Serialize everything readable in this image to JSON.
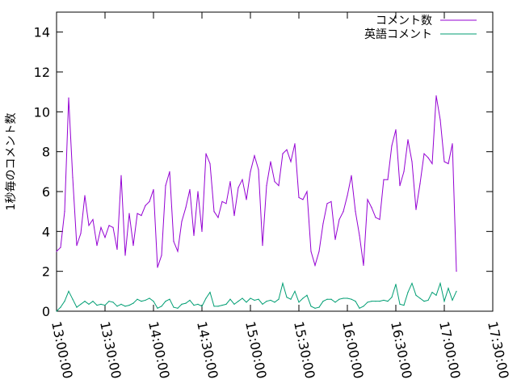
{
  "chart_data": {
    "type": "line",
    "title": "",
    "xlabel": "",
    "ylabel": "1秒毎のコメント数",
    "ylim": [
      0,
      15
    ],
    "yticks": [
      0,
      2,
      4,
      6,
      8,
      10,
      12,
      14
    ],
    "ytick_labels": [
      "0",
      "2",
      "4",
      "6",
      "8",
      "10",
      "12",
      "14"
    ],
    "xlim": [
      "13:00:00",
      "17:30:00"
    ],
    "xticks": [
      "13:00:00",
      "13:30:00",
      "14:00:00",
      "14:30:00",
      "15:00:00",
      "15:30:00",
      "16:00:00",
      "16:30:00",
      "17:00:00",
      "17:30:00"
    ],
    "legend_position": "top-right",
    "grid": false,
    "series": [
      {
        "name": "コメント数",
        "color": "#9400d3",
        "points": [
          [
            "13:00:00",
            3.0
          ],
          [
            "13:02:30",
            3.2
          ],
          [
            "13:05:00",
            5.0
          ],
          [
            "13:07:30",
            10.7
          ],
          [
            "13:10:00",
            6.7
          ],
          [
            "13:12:30",
            3.3
          ],
          [
            "13:15:00",
            3.9
          ],
          [
            "13:17:30",
            5.8
          ],
          [
            "13:20:00",
            4.3
          ],
          [
            "13:22:30",
            4.6
          ],
          [
            "13:25:00",
            3.3
          ],
          [
            "13:27:30",
            4.2
          ],
          [
            "13:30:00",
            3.7
          ],
          [
            "13:32:30",
            4.3
          ],
          [
            "13:35:00",
            4.2
          ],
          [
            "13:37:30",
            3.1
          ],
          [
            "13:40:00",
            6.8
          ],
          [
            "13:42:30",
            2.8
          ],
          [
            "13:45:00",
            4.9
          ],
          [
            "13:47:30",
            3.3
          ],
          [
            "13:50:00",
            4.9
          ],
          [
            "13:52:30",
            4.8
          ],
          [
            "13:55:00",
            5.3
          ],
          [
            "13:57:30",
            5.5
          ],
          [
            "14:00:00",
            6.1
          ],
          [
            "14:02:30",
            2.2
          ],
          [
            "14:05:00",
            2.8
          ],
          [
            "14:07:30",
            6.3
          ],
          [
            "14:10:00",
            7.0
          ],
          [
            "14:12:30",
            3.5
          ],
          [
            "14:15:00",
            3.0
          ],
          [
            "14:17:30",
            4.5
          ],
          [
            "14:20:00",
            5.2
          ],
          [
            "14:22:30",
            6.1
          ],
          [
            "14:25:00",
            3.8
          ],
          [
            "14:27:30",
            6.0
          ],
          [
            "14:30:00",
            4.0
          ],
          [
            "14:32:30",
            7.9
          ],
          [
            "14:35:00",
            7.4
          ],
          [
            "14:37:30",
            5.0
          ],
          [
            "14:40:00",
            4.7
          ],
          [
            "14:42:30",
            5.5
          ],
          [
            "14:45:00",
            5.4
          ],
          [
            "14:47:30",
            6.5
          ],
          [
            "14:50:00",
            4.8
          ],
          [
            "14:52:30",
            6.2
          ],
          [
            "14:55:00",
            6.6
          ],
          [
            "14:57:30",
            5.6
          ],
          [
            "15:00:00",
            7.0
          ],
          [
            "15:02:30",
            7.8
          ],
          [
            "15:05:00",
            7.1
          ],
          [
            "15:07:30",
            3.3
          ],
          [
            "15:10:00",
            6.3
          ],
          [
            "15:12:30",
            7.5
          ],
          [
            "15:15:00",
            6.5
          ],
          [
            "15:17:30",
            6.3
          ],
          [
            "15:20:00",
            7.9
          ],
          [
            "15:22:30",
            8.1
          ],
          [
            "15:25:00",
            7.5
          ],
          [
            "15:27:30",
            8.4
          ],
          [
            "15:30:00",
            5.7
          ],
          [
            "15:32:30",
            5.6
          ],
          [
            "15:35:00",
            6.0
          ],
          [
            "15:37:30",
            3.0
          ],
          [
            "15:40:00",
            2.3
          ],
          [
            "15:42:30",
            3.0
          ],
          [
            "15:45:00",
            4.4
          ],
          [
            "15:47:30",
            5.4
          ],
          [
            "15:50:00",
            5.5
          ],
          [
            "15:52:30",
            3.6
          ],
          [
            "15:55:00",
            4.6
          ],
          [
            "15:57:30",
            5.0
          ],
          [
            "16:00:00",
            5.8
          ],
          [
            "16:02:30",
            6.8
          ],
          [
            "16:05:00",
            5.0
          ],
          [
            "16:07:30",
            3.8
          ],
          [
            "16:10:00",
            2.3
          ],
          [
            "16:12:30",
            5.6
          ],
          [
            "16:15:00",
            5.2
          ],
          [
            "16:17:30",
            4.7
          ],
          [
            "16:20:00",
            4.6
          ],
          [
            "16:22:30",
            6.6
          ],
          [
            "16:25:00",
            6.6
          ],
          [
            "16:27:30",
            8.3
          ],
          [
            "16:30:00",
            9.1
          ],
          [
            "16:32:30",
            6.3
          ],
          [
            "16:35:00",
            7.0
          ],
          [
            "16:37:30",
            8.6
          ],
          [
            "16:40:00",
            7.5
          ],
          [
            "16:42:30",
            5.1
          ],
          [
            "16:45:00",
            6.4
          ],
          [
            "16:47:30",
            7.9
          ],
          [
            "16:50:00",
            7.7
          ],
          [
            "16:52:30",
            7.4
          ],
          [
            "16:55:00",
            10.8
          ],
          [
            "16:57:30",
            9.6
          ],
          [
            "17:00:00",
            7.5
          ],
          [
            "17:02:30",
            7.4
          ],
          [
            "17:05:00",
            8.4
          ],
          [
            "17:07:30",
            2.0
          ]
        ]
      },
      {
        "name": "英語コメント",
        "color": "#009e73",
        "points": [
          [
            "13:00:00",
            0.0
          ],
          [
            "13:02:30",
            0.2
          ],
          [
            "13:05:00",
            0.5
          ],
          [
            "13:07:30",
            1.0
          ],
          [
            "13:10:00",
            0.6
          ],
          [
            "13:12:30",
            0.2
          ],
          [
            "13:15:00",
            0.35
          ],
          [
            "13:17:30",
            0.5
          ],
          [
            "13:20:00",
            0.35
          ],
          [
            "13:22:30",
            0.5
          ],
          [
            "13:25:00",
            0.3
          ],
          [
            "13:27:30",
            0.35
          ],
          [
            "13:30:00",
            0.3
          ],
          [
            "13:32:30",
            0.5
          ],
          [
            "13:35:00",
            0.45
          ],
          [
            "13:37:30",
            0.25
          ],
          [
            "13:40:00",
            0.35
          ],
          [
            "13:42:30",
            0.25
          ],
          [
            "13:45:00",
            0.3
          ],
          [
            "13:47:30",
            0.4
          ],
          [
            "13:50:00",
            0.6
          ],
          [
            "13:52:30",
            0.5
          ],
          [
            "13:55:00",
            0.55
          ],
          [
            "13:57:30",
            0.65
          ],
          [
            "14:00:00",
            0.5
          ],
          [
            "14:02:30",
            0.15
          ],
          [
            "14:05:00",
            0.25
          ],
          [
            "14:07:30",
            0.5
          ],
          [
            "14:10:00",
            0.6
          ],
          [
            "14:12:30",
            0.2
          ],
          [
            "14:15:00",
            0.15
          ],
          [
            "14:17:30",
            0.35
          ],
          [
            "14:20:00",
            0.4
          ],
          [
            "14:22:30",
            0.55
          ],
          [
            "14:25:00",
            0.3
          ],
          [
            "14:27:30",
            0.35
          ],
          [
            "14:30:00",
            0.25
          ],
          [
            "14:32:30",
            0.65
          ],
          [
            "14:35:00",
            0.95
          ],
          [
            "14:37:30",
            0.25
          ],
          [
            "14:40:00",
            0.25
          ],
          [
            "14:42:30",
            0.3
          ],
          [
            "14:45:00",
            0.35
          ],
          [
            "14:47:30",
            0.6
          ],
          [
            "14:50:00",
            0.35
          ],
          [
            "14:52:30",
            0.5
          ],
          [
            "14:55:00",
            0.65
          ],
          [
            "14:57:30",
            0.45
          ],
          [
            "15:00:00",
            0.65
          ],
          [
            "15:02:30",
            0.55
          ],
          [
            "15:05:00",
            0.6
          ],
          [
            "15:07:30",
            0.35
          ],
          [
            "15:10:00",
            0.5
          ],
          [
            "15:12:30",
            0.55
          ],
          [
            "15:15:00",
            0.45
          ],
          [
            "15:17:30",
            0.6
          ],
          [
            "15:20:00",
            1.4
          ],
          [
            "15:22:30",
            0.7
          ],
          [
            "15:25:00",
            0.6
          ],
          [
            "15:27:30",
            1.0
          ],
          [
            "15:30:00",
            0.45
          ],
          [
            "15:32:30",
            0.65
          ],
          [
            "15:35:00",
            0.8
          ],
          [
            "15:37:30",
            0.25
          ],
          [
            "15:40:00",
            0.15
          ],
          [
            "15:42:30",
            0.2
          ],
          [
            "15:45:00",
            0.5
          ],
          [
            "15:47:30",
            0.6
          ],
          [
            "15:50:00",
            0.6
          ],
          [
            "15:52:30",
            0.45
          ],
          [
            "15:55:00",
            0.6
          ],
          [
            "15:57:30",
            0.65
          ],
          [
            "16:00:00",
            0.65
          ],
          [
            "16:02:30",
            0.6
          ],
          [
            "16:05:00",
            0.5
          ],
          [
            "16:07:30",
            0.15
          ],
          [
            "16:10:00",
            0.25
          ],
          [
            "16:12:30",
            0.45
          ],
          [
            "16:15:00",
            0.5
          ],
          [
            "16:17:30",
            0.5
          ],
          [
            "16:20:00",
            0.5
          ],
          [
            "16:22:30",
            0.55
          ],
          [
            "16:25:00",
            0.5
          ],
          [
            "16:27:30",
            0.7
          ],
          [
            "16:30:00",
            1.35
          ],
          [
            "16:32:30",
            0.35
          ],
          [
            "16:35:00",
            0.3
          ],
          [
            "16:37:30",
            0.95
          ],
          [
            "16:40:00",
            1.4
          ],
          [
            "16:42:30",
            0.8
          ],
          [
            "16:45:00",
            0.65
          ],
          [
            "16:47:30",
            0.5
          ],
          [
            "16:50:00",
            0.55
          ],
          [
            "16:52:30",
            0.95
          ],
          [
            "16:55:00",
            0.8
          ],
          [
            "16:57:30",
            1.4
          ],
          [
            "17:00:00",
            0.5
          ],
          [
            "17:02:30",
            1.15
          ],
          [
            "17:05:00",
            0.55
          ],
          [
            "17:07:30",
            1.0
          ]
        ]
      }
    ]
  }
}
